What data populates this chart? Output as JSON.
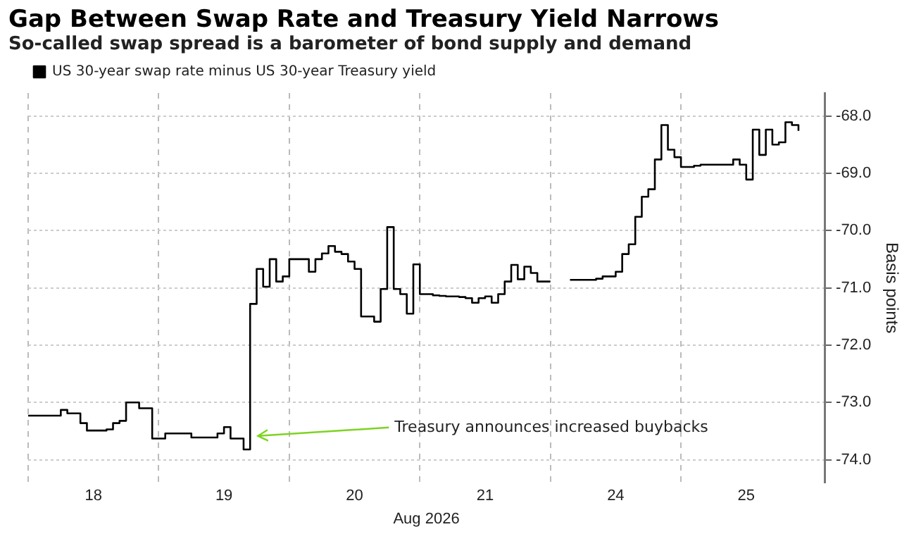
{
  "chart_data": {
    "type": "step",
    "title": "Gap Between Swap Rate and Treasury Yield Narrows",
    "subtitle": "So-called swap spread is a barometer of bond supply and demand",
    "xlabel": "Aug 2026",
    "ylabel": "Basis points",
    "categories": [
      null,
      null,
      null,
      null,
      null,
      null,
      null,
      null,
      null,
      null,
      "18",
      null,
      null,
      null,
      null,
      null,
      null,
      null,
      null,
      null,
      null,
      null,
      null,
      null,
      null,
      null,
      null,
      null,
      null,
      null,
      "19",
      null,
      null,
      null,
      null,
      null,
      null,
      null,
      null,
      null,
      null,
      null,
      null,
      null,
      null,
      null,
      null,
      null,
      null,
      null,
      "20",
      null,
      null,
      null,
      null,
      null,
      null,
      null,
      null,
      null,
      null,
      null,
      null,
      null,
      null,
      null,
      null,
      null,
      null,
      null,
      "21",
      null,
      null,
      null,
      null,
      null,
      null,
      null,
      null,
      null,
      null,
      null,
      null,
      null,
      null,
      null,
      null,
      null,
      null,
      null,
      "24",
      null,
      null,
      null,
      null,
      null,
      null,
      null,
      null,
      null,
      null,
      null,
      null,
      null,
      null,
      null,
      null,
      null,
      null,
      null,
      "25",
      null,
      null,
      null,
      null,
      null,
      null,
      null,
      null,
      null,
      null,
      null,
      null
    ],
    "series": [
      {
        "name": "US 30-year swap rate minus US 30-year Treasury yield",
        "color": "#000000",
        "values": [
          -73.23,
          -73.23,
          -73.23,
          -73.23,
          -73.23,
          -73.13,
          -73.19,
          -73.19,
          -73.36,
          -73.49,
          -73.49,
          -73.49,
          -73.47,
          -73.36,
          -73.32,
          -73.0,
          -73.0,
          -73.1,
          -73.1,
          -73.63,
          -73.63,
          -73.54,
          -73.54,
          -73.54,
          -73.54,
          -73.61,
          -73.61,
          -73.61,
          -73.61,
          -73.54,
          -73.43,
          -73.63,
          -73.63,
          -73.82,
          -71.28,
          -70.67,
          -70.98,
          -70.5,
          -70.89,
          -70.8,
          -70.5,
          -70.5,
          -70.5,
          -70.72,
          -70.5,
          -70.4,
          -70.27,
          -70.37,
          -70.41,
          -70.54,
          -70.67,
          -71.5,
          -71.5,
          -71.59,
          -71.02,
          -69.94,
          -71.02,
          -71.11,
          -71.45,
          -70.59,
          -71.11,
          -71.11,
          -71.13,
          -71.14,
          -71.15,
          -71.15,
          -71.16,
          -71.18,
          -71.26,
          -71.18,
          -71.15,
          -71.26,
          -71.11,
          -70.89,
          -70.6,
          -70.85,
          -70.63,
          -70.74,
          -70.89,
          -70.89,
          -70.89,
          null,
          null,
          -70.86,
          -70.86,
          -70.86,
          -70.86,
          -70.84,
          -70.8,
          -70.8,
          -70.72,
          -70.41,
          -70.24,
          -69.76,
          -69.41,
          -69.28,
          -68.76,
          -68.16,
          -68.59,
          -68.72,
          -68.89,
          -68.89,
          -68.87,
          -68.85,
          -68.85,
          -68.85,
          -68.85,
          -68.85,
          -68.76,
          -68.85,
          -69.11,
          -68.24,
          -68.68,
          -68.24,
          -68.5,
          -68.46,
          -68.11,
          -68.16,
          -68.26,
          null,
          null,
          null,
          null
        ]
      }
    ],
    "ylim": [
      -74.4,
      -67.6
    ],
    "yticks": [
      {
        "value": -74,
        "label": "-74.0"
      },
      {
        "value": -73,
        "label": "-73.0"
      },
      {
        "value": -72,
        "label": "-72.0"
      },
      {
        "value": -71,
        "label": "-71.0"
      },
      {
        "value": -70,
        "label": "-70.0"
      },
      {
        "value": -69,
        "label": "-69.0"
      },
      {
        "value": -68,
        "label": "-68.0"
      }
    ],
    "annotations": [
      "Treasury announces increased buybacks"
    ],
    "grid": true,
    "legend": "top left",
    "line_style": "solid",
    "marker": "none"
  }
}
